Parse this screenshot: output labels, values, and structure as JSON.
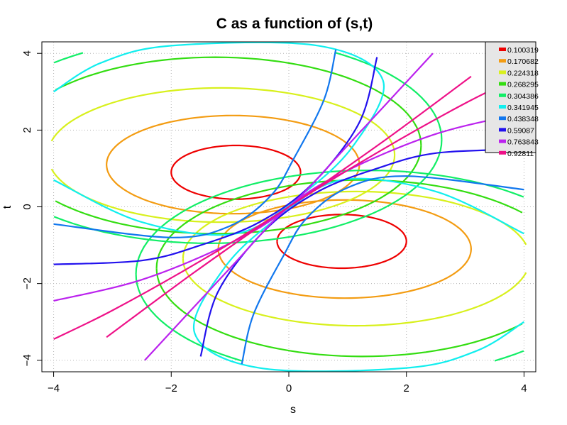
{
  "chart_data": {
    "type": "line",
    "title": "C as a function of (s,t)",
    "xlabel": "s",
    "ylabel": "t",
    "xlim": [
      -4.2,
      4.2
    ],
    "ylim": [
      -4.3,
      4.3
    ],
    "xticks": [
      -4,
      -2,
      0,
      2,
      4
    ],
    "yticks": [
      -4,
      -2,
      0,
      2,
      4
    ],
    "xtick_labels": [
      "−4",
      "−2",
      "0",
      "2",
      "4"
    ],
    "ytick_labels": [
      "−4",
      "−2",
      "0",
      "2",
      "4"
    ],
    "grid": true,
    "legend_position": "top-right",
    "series": [
      {
        "name": "0.100319",
        "color": "#ee0000",
        "shape": "ellipse",
        "values": {
          "center": [
            -0.9,
            0.9
          ],
          "rx": 1.1,
          "ry": 0.7
        }
      },
      {
        "name": "0.170682",
        "color": "#f39c12",
        "shape": "ellipse",
        "values": {
          "center": [
            -0.95,
            1.1
          ],
          "rx": 2.15,
          "ry": 1.28
        }
      },
      {
        "name": "0.224318",
        "color": "#d8f01c",
        "shape": "ellipse",
        "values": {
          "center": [
            -1.15,
            1.35
          ],
          "rx": 2.95,
          "ry": 1.75
        }
      },
      {
        "name": "0.268295",
        "color": "#33dd11",
        "shape": "ellipse",
        "values": {
          "center": [
            -1.25,
            1.6
          ],
          "rx": 3.5,
          "ry": 2.3
        }
      },
      {
        "name": "0.304386",
        "color": "#11ee66",
        "shape": "ellipse",
        "values": {
          "center": [
            -1.35,
            1.75
          ],
          "rx": 3.95,
          "ry": 2.7
        }
      },
      {
        "name": "0.341945",
        "color": "#11eeee",
        "shape": "open",
        "values": {
          "points": [
            [
              -4,
              3.0
            ],
            [
              -3.2,
              3.75
            ],
            [
              -2.0,
              4.2
            ],
            [
              0.5,
              4.2
            ],
            [
              1.6,
              3.3
            ],
            [
              1.1,
              1.6
            ],
            [
              0.2,
              0.3
            ],
            [
              -0.9,
              -0.7
            ],
            [
              -2.5,
              -0.4
            ],
            [
              -4,
              0.7
            ]
          ]
        }
      },
      {
        "name": "0.438348",
        "color": "#1177ee",
        "shape": "open",
        "values": {
          "points": [
            [
              0.8,
              4.1
            ],
            [
              0.6,
              2.8
            ],
            [
              0.1,
              1.3
            ],
            [
              -0.3,
              0.3
            ],
            [
              -1.0,
              -0.5
            ],
            [
              -2.0,
              -0.8
            ],
            [
              -4,
              -0.45
            ]
          ]
        }
      },
      {
        "name": "0.59087",
        "color": "#2211ee",
        "shape": "open",
        "values": {
          "points": [
            [
              1.5,
              3.9
            ],
            [
              1.2,
              2.2
            ],
            [
              0.4,
              0.6
            ],
            [
              -0.5,
              -0.4
            ],
            [
              -1.5,
              -1.0
            ],
            [
              -2.5,
              -1.4
            ],
            [
              -4,
              -1.5
            ]
          ]
        }
      },
      {
        "name": "0.763843",
        "color": "#bb22ee",
        "shape": "open",
        "values": {
          "points": [
            [
              2.45,
              4.0
            ],
            [
              1.0,
              1.6
            ],
            [
              0,
              0
            ],
            [
              -1.0,
              -0.95
            ],
            [
              -2.5,
              -1.9
            ],
            [
              -4,
              -2.45
            ]
          ]
        }
      },
      {
        "name": "0.92811",
        "color": "#ee1188",
        "shape": "open",
        "values": {
          "points": [
            [
              3.1,
              3.4
            ],
            [
              1.6,
              1.7
            ],
            [
              0,
              0
            ],
            [
              -1.6,
              -1.5
            ],
            [
              -3.0,
              -2.7
            ],
            [
              -4,
              -3.45
            ]
          ]
        }
      }
    ]
  }
}
